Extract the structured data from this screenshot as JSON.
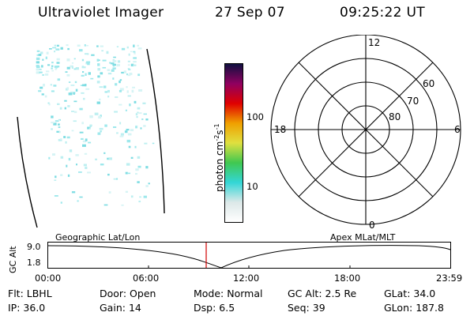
{
  "header": {
    "instrument": "Ultraviolet Imager",
    "date": "27 Sep 07",
    "time": "09:25:22 UT"
  },
  "colorbar": {
    "unit_label": "photon cm",
    "unit_sup1": "-2",
    "unit_mid": "s",
    "unit_sup2": "-1",
    "ticks": [
      "100",
      "10"
    ],
    "stops": [
      "#ffffff",
      "#dce8e8",
      "#33d6d6",
      "#40c850",
      "#e0e040",
      "#f0a000",
      "#e00000",
      "#900060",
      "#101040"
    ]
  },
  "polar_plot": {
    "mlt_labels": {
      "top": "12",
      "bottom": "0",
      "left": "18",
      "right": "6"
    },
    "lat_labels": [
      "60",
      "70",
      "80"
    ]
  },
  "timeline": {
    "left_title": "Geographic Lat/Lon",
    "right_title": "Apex MLat/MLT",
    "axis_label": "GC Alt",
    "y_ticks": [
      "9.0",
      "1.8"
    ],
    "x_ticks": [
      "00:00",
      "06:00",
      "12:00",
      "18:00",
      "23:59"
    ]
  },
  "status": [
    {
      "label": "Flt:",
      "value": "LBHL"
    },
    {
      "label": "Door:",
      "value": "Open"
    },
    {
      "label": "Mode:",
      "value": "Normal"
    },
    {
      "label": "GC Alt:",
      "value": "2.5 Re"
    },
    {
      "label": "GLat:",
      "value": "34.0"
    },
    {
      "label": "IP:",
      "value": "36.0"
    },
    {
      "label": "Gain:",
      "value": "14"
    },
    {
      "label": "Dsp:",
      "value": "6.5"
    },
    {
      "label": "Seq:",
      "value": "39"
    },
    {
      "label": "GLon:",
      "value": "187.8"
    }
  ]
}
